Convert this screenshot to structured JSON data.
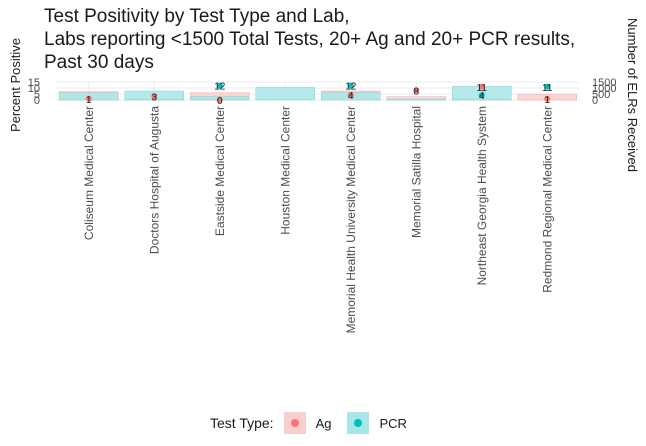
{
  "chart_data": {
    "type": "bar",
    "title": [
      "Test Positivity by Test Type and Lab,",
      "Labs reporting <1500 Total Tests, 20+ Ag and 20+ PCR results,",
      "Past 30 days"
    ],
    "ylabel": "Percent Positive",
    "y2label": "Number of ELRs Received",
    "y_ticks": [
      "0",
      "5",
      "10",
      "15"
    ],
    "y2_ticks": [
      "0",
      "500",
      "1000",
      "1500"
    ],
    "categories": [
      "Coliseum Medical Center",
      "Doctors Hospital of Augusta",
      "Eastside Medical Center",
      "Houston Medical Center",
      "Memorial Health University Medical Center",
      "Memorial Satilla Hospital",
      "Northeast Georgia Health System",
      "Redmond Regional Medical Center"
    ],
    "elrs_received": [
      {
        "name": "Ag",
        "values": [
          700,
          150,
          600,
          0,
          750,
          280,
          150,
          450
        ]
      },
      {
        "name": "PCR",
        "values": [
          600,
          750,
          300,
          1050,
          650,
          80,
          1150,
          0
        ]
      }
    ],
    "percent_positive": [
      {
        "name": "Ag",
        "values": [
          1,
          3,
          0,
          null,
          4,
          8,
          11,
          1
        ],
        "labels": [
          "1",
          "3",
          "0",
          "",
          "4",
          "8",
          "11",
          "1"
        ]
      },
      {
        "name": "PCR",
        "values": [
          null,
          null,
          12,
          null,
          12,
          null,
          4,
          11
        ],
        "labels": [
          "",
          "",
          "12",
          "",
          "12",
          "",
          "4",
          "11"
        ]
      }
    ],
    "legend": {
      "title": "Test Type:",
      "position": "bottom",
      "items": [
        {
          "label": "Ag",
          "fill": "#f8cfcd",
          "point": "#f8766d"
        },
        {
          "label": "PCR",
          "fill": "#a8e6e8",
          "point": "#00bfc4"
        }
      ]
    },
    "grid": true
  }
}
